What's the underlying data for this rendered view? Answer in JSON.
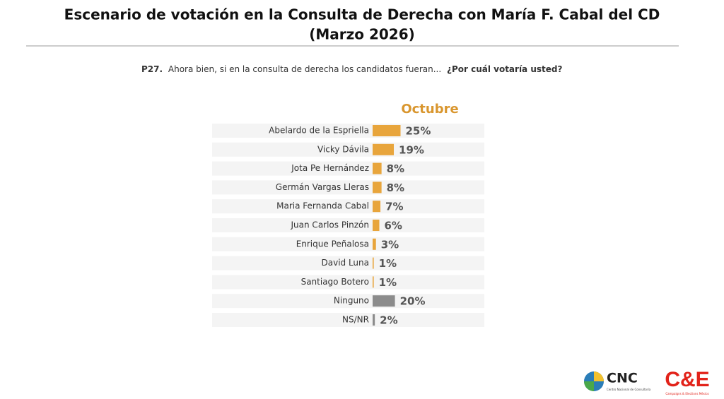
{
  "chart_data": {
    "type": "bar",
    "title": [
      "Escenario de votación en la Consulta de Derecha con María F. Cabal del CD",
      "(Marzo 2026)"
    ],
    "question": {
      "number": "P27.",
      "text": "Ahora bien, si en la consulta de derecha los candidatos fueran...",
      "emphasis": "¿Por cuál votaría usted?"
    },
    "series_name": "Octubre",
    "series_color": "#d9962e",
    "categories": [
      "Abelardo de la Espriella",
      "Vicky Dávila",
      "Jota Pe Hernández",
      "Germán Vargas Lleras",
      "Maria Fernanda Cabal",
      "Juan Carlos Pinzón",
      "Enrique Peñalosa",
      "David Luna",
      "Santiago Botero",
      "Ninguno",
      "NS/NR"
    ],
    "values": [
      25,
      19,
      8,
      8,
      7,
      6,
      3,
      1,
      1,
      20,
      2
    ],
    "value_labels": [
      "25%",
      "19%",
      "8%",
      "8%",
      "7%",
      "6%",
      "3%",
      "1%",
      "1%",
      "20%",
      "2%"
    ],
    "colors": [
      "#e8a53c",
      "#e8a53c",
      "#e8a53c",
      "#e8a53c",
      "#e8a53c",
      "#e8a53c",
      "#e8a53c",
      "#e8a53c",
      "#e8a53c",
      "#8c8c8c",
      "#8c8c8c"
    ],
    "xlim": [
      0,
      100
    ],
    "logos": {
      "cnc": "CNC",
      "cnc_sub": "Centro Nacional de Consultoría",
      "ce": "C&E",
      "ce_sub": "Campaigns & Elections México"
    }
  }
}
